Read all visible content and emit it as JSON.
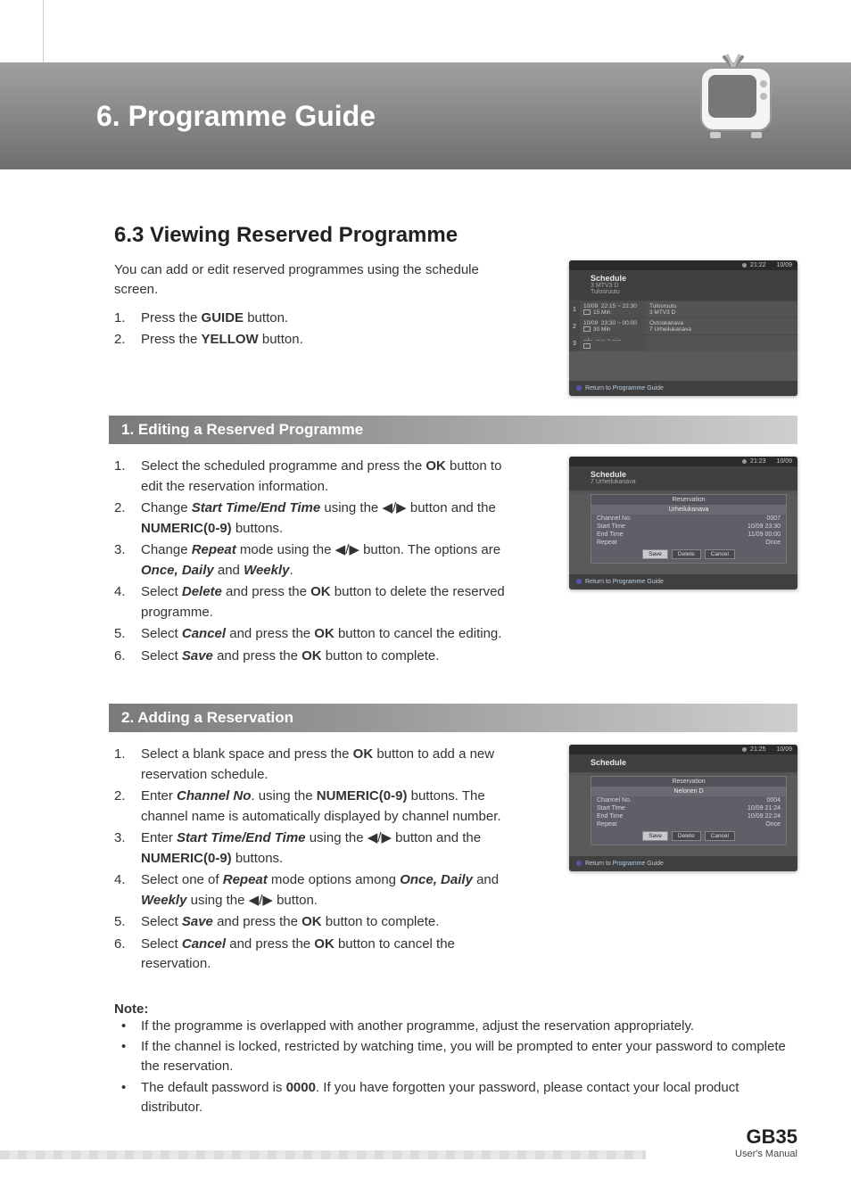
{
  "header": {
    "chapter": "6. Programme Guide"
  },
  "section": {
    "title": "6.3 Viewing Reserved Programme",
    "intro": "You can add or edit reserved programmes using the schedule screen.",
    "steps": [
      {
        "pre": "Press the ",
        "bold": "GUIDE",
        "post": " button."
      },
      {
        "pre": "Press the ",
        "bold": "YELLOW",
        "post": " button."
      }
    ]
  },
  "screenshots": {
    "time1": "21:22",
    "date1": "10/09",
    "time2": "21:23",
    "date2": "10/09",
    "time3": "21:25",
    "date3": "10/09",
    "schedule_label": "Schedule",
    "channel_sub1": "3  MTV3 D",
    "channel_sub1b": "Tulosruutu",
    "channel_sub2": "7  Urheilukanava",
    "rows": [
      {
        "idx": "1",
        "date": "10/09",
        "time": "22:15 ~ 22:30",
        "dur": "15 Min",
        "prog": "Tulosruutu",
        "ch": "3  MTV3 D"
      },
      {
        "idx": "2",
        "date": "10/09",
        "time": "23:30 ~ 00:00",
        "dur": "30 Min",
        "prog": "Ostoskanava",
        "ch": "7  Urheilukanava"
      },
      {
        "idx": "3",
        "date": "--/--",
        "time": "--:-- ~ --:--",
        "dur": "",
        "prog": "",
        "ch": ""
      }
    ],
    "return_label": "Return to Programme Guide",
    "reservation_label": "Reservation",
    "resv2": {
      "header": "Urheilukanava",
      "channel_no": "0007",
      "start": "10/09  23:30",
      "end": "11/09  00:00",
      "repeat": "Once"
    },
    "resv3": {
      "header": "Nelonen D",
      "channel_no": "0004",
      "start": "10/09  21:24",
      "end": "10/09  22:24",
      "repeat": "Once"
    },
    "labels": {
      "channel": "Channel No.",
      "start": "Start Time",
      "end": "End Time",
      "repeat": "Repeat",
      "save": "Save",
      "delete": "Delete",
      "cancel": "Cancel"
    }
  },
  "sub1": {
    "title": "1. Editing a Reserved Programme",
    "steps": [
      "Select the scheduled programme and press the <b>OK</b> button to edit the reservation information.",
      "Change <span class='bi'>Start Time/End Time</span> using the <span class='tri'>◀</span>/<span class='tri'>▶</span> button and the <b>NUMERIC(0-9)</b> buttons.",
      "Change <span class='bi'>Repeat</span> mode using the <span class='tri'>◀</span>/<span class='tri'>▶</span> button. The options are <span class='bi'>Once, Daily</span> and <span class='bi'>Weekly</span>.",
      "Select <span class='bi'>Delete</span> and press the <b>OK</b> button to delete the reserved programme.",
      "Select <span class='bi'>Cancel</span> and press the <b>OK</b> button to cancel the editing.",
      "Select <span class='bi'>Save</span> and press the <b>OK</b> button to complete."
    ]
  },
  "sub2": {
    "title": "2. Adding a Reservation",
    "steps": [
      "Select a blank space and press the <b>OK</b> button to add a new reservation schedule.",
      "Enter <span class='bi'>Channel No</span>. using the <b>NUMERIC(0-9)</b> buttons. The channel name is automatically displayed by channel number.",
      "Enter <span class='bi'>Start Time/End Time</span> using the <span class='tri'>◀</span>/<span class='tri'>▶</span> button and the <b>NUMERIC(0-9)</b> buttons.",
      "Select one of <span class='bi'>Repeat</span> mode options among <span class='bi'>Once, Daily</span> and <span class='bi'>Weekly</span> using the <span class='tri'>◀</span>/<span class='tri'>▶</span> button.",
      "Select <span class='bi'>Save</span> and press the <b>OK</b> button to complete.",
      "Select <span class='bi'>Cancel</span> and press the <b>OK</b> button to cancel the reservation."
    ]
  },
  "note": {
    "title": "Note:",
    "items": [
      "If the programme is overlapped with another programme, adjust the reservation appropriately.",
      "If the channel is locked, restricted by watching time, you will be prompted to enter your password to complete the reservation.",
      "The default password is <b>0000</b>. If you have forgotten your password, please contact your local product distributor."
    ]
  },
  "footer": {
    "page": "GB35",
    "sub": "User's Manual"
  },
  "colors": {
    "header_grad_top": "#a0a0a0",
    "header_grad_bot": "#6e6e6e",
    "sub_bg": "#7a7a7a"
  }
}
